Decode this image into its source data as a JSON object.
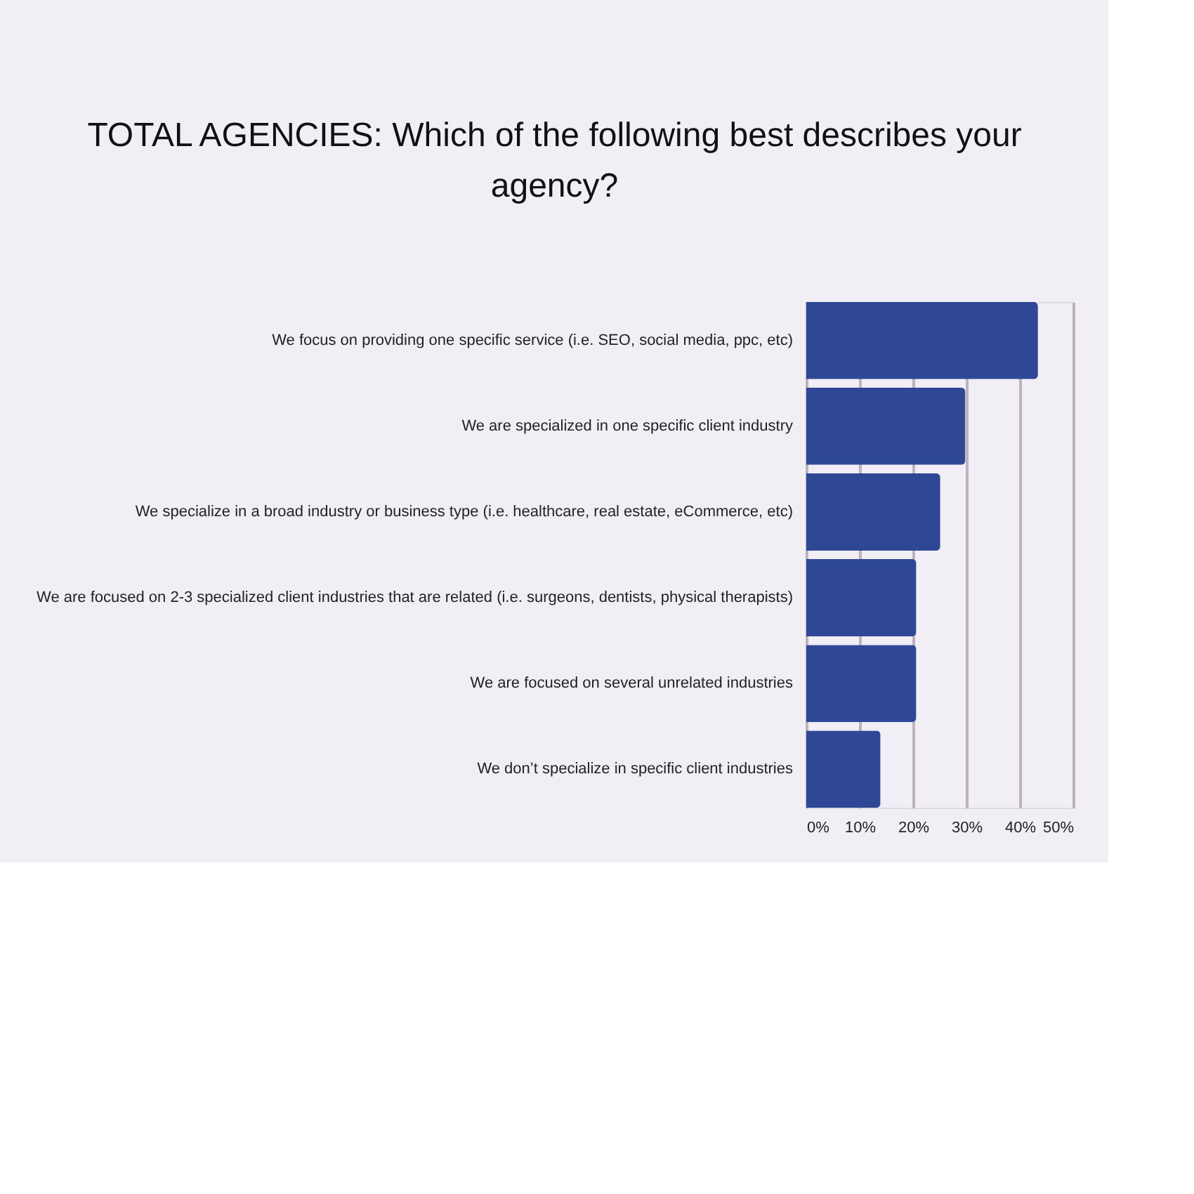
{
  "chart_data": {
    "type": "bar",
    "orientation": "horizontal",
    "title": "TOTAL AGENCIES: Which of the following best describes your agency?",
    "categories": [
      "We focus on providing one specific service (i.e. SEO, social media, ppc, etc)",
      "We are specialized in one specific client industry",
      "We specialize in a broad industry or business type (i.e. healthcare, real estate, eCommerce, etc)",
      "We are focused on 2-3 specialized client industries that are related (i.e. surgeons, dentists, physical therapists)",
      "We are focused on several unrelated industries",
      "We don’t specialize in specific client industries"
    ],
    "values": [
      43.4,
      29.8,
      25.1,
      20.6,
      20.6,
      13.9
    ],
    "color": "#2e4896",
    "xlim": [
      0,
      50
    ],
    "xticks": [
      {
        "value": 0,
        "label": "0%"
      },
      {
        "value": 10,
        "label": "10%"
      },
      {
        "value": 20,
        "label": "20%"
      },
      {
        "value": 30,
        "label": "30%"
      },
      {
        "value": 40,
        "label": "40%"
      },
      {
        "value": 50,
        "label": "50%"
      }
    ],
    "grid": "x"
  }
}
